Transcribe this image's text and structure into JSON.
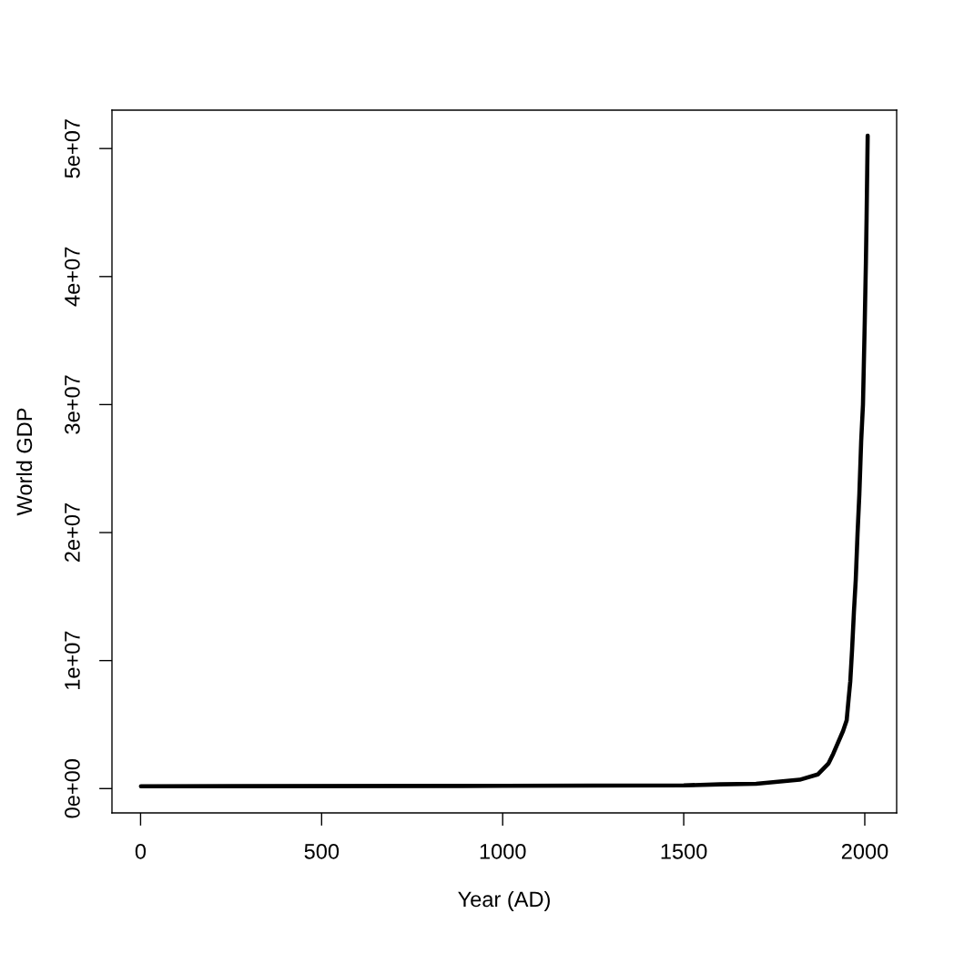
{
  "chart_data": {
    "type": "line",
    "xlabel": "Year (AD)",
    "ylabel": "World GDP",
    "x": [
      1,
      1000,
      1500,
      1600,
      1700,
      1820,
      1870,
      1900,
      1913,
      1940,
      1950,
      1955,
      1960,
      1965,
      1970,
      1975,
      1980,
      1985,
      1990,
      1995,
      2000,
      2003,
      2005,
      2008
    ],
    "series": [
      {
        "color": "#000000",
        "values": [
          180000,
          210000,
          250000,
          330000,
          370000,
          690000,
          1100000,
          1970000,
          2730000,
          4500000,
          5340000,
          6900000,
          8400000,
          10900000,
          13800000,
          16300000,
          19900000,
          23000000,
          27100000,
          30000000,
          36600000,
          41000000,
          44600000,
          51000000
        ]
      }
    ],
    "line_style": "solid",
    "xlim": [
      -79,
      2088
    ],
    "ylim": [
      -1900000,
      53000000
    ],
    "xticks": [
      0,
      500,
      1000,
      1500,
      2000
    ],
    "yticks": [
      {
        "value": 0,
        "label": "0e+00"
      },
      {
        "value": 10000000,
        "label": "1e+07"
      },
      {
        "value": 20000000,
        "label": "2e+07"
      },
      {
        "value": 30000000,
        "label": "3e+07"
      },
      {
        "value": 40000000,
        "label": "4e+07"
      },
      {
        "value": 50000000,
        "label": "5e+07"
      }
    ]
  }
}
